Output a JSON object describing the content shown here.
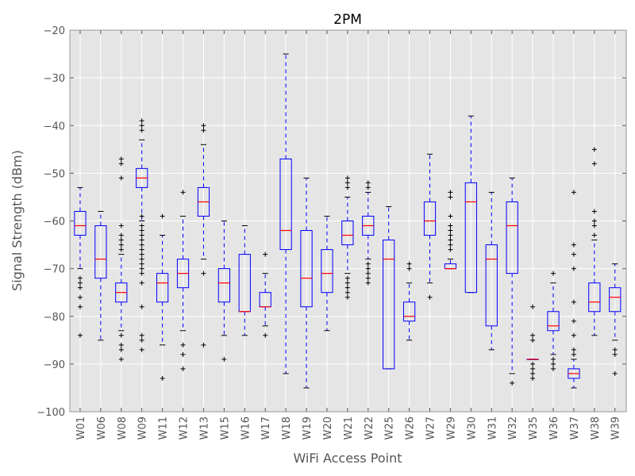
{
  "chart_data": {
    "type": "box",
    "title": "2PM",
    "xlabel": "WiFi Access Point",
    "ylabel": "Signal Strength (dBm)",
    "ylim": [
      -100,
      -20
    ],
    "yticks": [
      -100,
      -90,
      -80,
      -70,
      -60,
      -50,
      -40,
      -30,
      -20
    ],
    "ytick_labels": [
      "−100",
      "−90",
      "−80",
      "−70",
      "−60",
      "−50",
      "−40",
      "−30",
      "−20"
    ],
    "grid": true,
    "colors": {
      "background": "#e5e5e5",
      "grid": "#ffffff",
      "box": "#0000ff",
      "median": "#ff0000",
      "flier": "#000000",
      "text": "#555555"
    },
    "boxes": [
      {
        "label": "W01",
        "whislo": -70,
        "q1": -63,
        "med": -61,
        "q3": -58,
        "whishi": -53,
        "fliers": [
          -72,
          -73,
          -74,
          -76,
          -78,
          -84
        ]
      },
      {
        "label": "W06",
        "whislo": -85,
        "q1": -72,
        "med": -68,
        "q3": -61,
        "whishi": -58,
        "fliers": []
      },
      {
        "label": "W08",
        "whislo": -83,
        "q1": -77,
        "med": -75,
        "q3": -73,
        "whishi": -67,
        "fliers": [
          -47,
          -48,
          -51,
          -61,
          -63,
          -64,
          -65,
          -66,
          -84,
          -86,
          -87,
          -89
        ]
      },
      {
        "label": "W09",
        "whislo": -60,
        "q1": -53,
        "med": -51,
        "q3": -49,
        "whishi": -43,
        "fliers": [
          -39,
          -40,
          -41,
          -59,
          -61,
          -62,
          -63,
          -64,
          -65,
          -66,
          -67,
          -68,
          -69,
          -70,
          -71,
          -73,
          -78,
          -84,
          -85,
          -87
        ]
      },
      {
        "label": "W11",
        "whislo": -86,
        "q1": -77,
        "med": -73,
        "q3": -71,
        "whishi": -63,
        "fliers": [
          -59,
          -93
        ]
      },
      {
        "label": "W12",
        "whislo": -83,
        "q1": -74,
        "med": -71,
        "q3": -68,
        "whishi": -59,
        "fliers": [
          -54,
          -86,
          -88,
          -91
        ]
      },
      {
        "label": "W13",
        "whislo": -68,
        "q1": -59,
        "med": -56,
        "q3": -53,
        "whishi": -44,
        "fliers": [
          -40,
          -41,
          -71,
          -86
        ]
      },
      {
        "label": "W15",
        "whislo": -84,
        "q1": -77,
        "med": -73,
        "q3": -70,
        "whishi": -60,
        "fliers": [
          -89
        ]
      },
      {
        "label": "W16",
        "whislo": -84,
        "q1": -79,
        "med": -79,
        "q3": -67,
        "whishi": -61,
        "fliers": []
      },
      {
        "label": "W17",
        "whislo": -82,
        "q1": -78,
        "med": -78,
        "q3": -75,
        "whishi": -71,
        "fliers": [
          -67,
          -84
        ]
      },
      {
        "label": "W18",
        "whislo": -92,
        "q1": -66,
        "med": -62,
        "q3": -47,
        "whishi": -25,
        "fliers": []
      },
      {
        "label": "W19",
        "whislo": -95,
        "q1": -78,
        "med": -72,
        "q3": -62,
        "whishi": -51,
        "fliers": []
      },
      {
        "label": "W20",
        "whislo": -83,
        "q1": -75,
        "med": -71,
        "q3": -66,
        "whishi": -59,
        "fliers": []
      },
      {
        "label": "W21",
        "whislo": -71,
        "q1": -65,
        "med": -63,
        "q3": -60,
        "whishi": -55,
        "fliers": [
          -51,
          -52,
          -53,
          -72,
          -73,
          -74,
          -75,
          -76
        ]
      },
      {
        "label": "W22",
        "whislo": -68,
        "q1": -63,
        "med": -61,
        "q3": -59,
        "whishi": -54,
        "fliers": [
          -52,
          -53,
          -69,
          -70,
          -71,
          -72,
          -73
        ]
      },
      {
        "label": "W25",
        "whislo": -91,
        "q1": -91,
        "med": -68,
        "q3": -64,
        "whishi": -57,
        "fliers": []
      },
      {
        "label": "W26",
        "whislo": -85,
        "q1": -81,
        "med": -80,
        "q3": -77,
        "whishi": -73,
        "fliers": [
          -69,
          -70
        ]
      },
      {
        "label": "W27",
        "whislo": -73,
        "q1": -63,
        "med": -60,
        "q3": -56,
        "whishi": -46,
        "fliers": [
          -76
        ]
      },
      {
        "label": "W29",
        "whislo": -70,
        "q1": -70,
        "med": -70,
        "q3": -69,
        "whishi": -68,
        "fliers": [
          -54,
          -55,
          -59,
          -61,
          -62,
          -63,
          -64,
          -65,
          -66
        ]
      },
      {
        "label": "W30",
        "whislo": -75,
        "q1": -75,
        "med": -56,
        "q3": -52,
        "whishi": -38,
        "fliers": []
      },
      {
        "label": "W31",
        "whislo": -87,
        "q1": -82,
        "med": -68,
        "q3": -65,
        "whishi": -54,
        "fliers": []
      },
      {
        "label": "W32",
        "whislo": -92,
        "q1": -71,
        "med": -61,
        "q3": -56,
        "whishi": -51,
        "fliers": [
          -94
        ]
      },
      {
        "label": "W35",
        "whislo": -89,
        "q1": -89,
        "med": -89,
        "q3": -89,
        "whishi": -89,
        "fliers": [
          -78,
          -84,
          -85,
          -90,
          -91,
          -92,
          -93
        ]
      },
      {
        "label": "W36",
        "whislo": -88,
        "q1": -83,
        "med": -82,
        "q3": -79,
        "whishi": -73,
        "fliers": [
          -71,
          -89,
          -90,
          -91
        ]
      },
      {
        "label": "W37",
        "whislo": -95,
        "q1": -93,
        "med": -92,
        "q3": -91,
        "whishi": -89,
        "fliers": [
          -54,
          -65,
          -67,
          -70,
          -77,
          -81,
          -84,
          -87,
          -88
        ]
      },
      {
        "label": "W38",
        "whislo": -84,
        "q1": -79,
        "med": -77,
        "q3": -73,
        "whishi": -64,
        "fliers": [
          -45,
          -48,
          -58,
          -60,
          -61,
          -63
        ]
      },
      {
        "label": "W39",
        "whislo": -85,
        "q1": -79,
        "med": -76,
        "q3": -74,
        "whishi": -69,
        "fliers": [
          -87,
          -88,
          -92
        ]
      }
    ]
  }
}
